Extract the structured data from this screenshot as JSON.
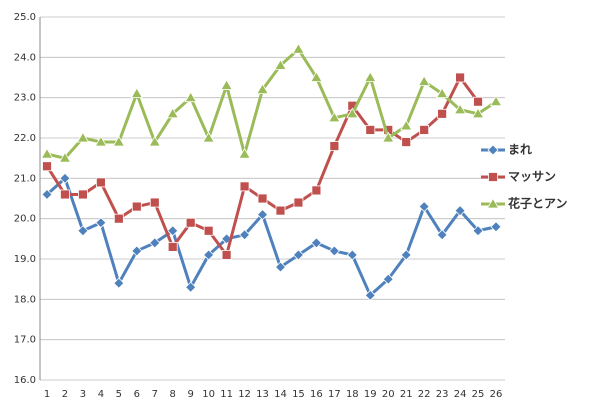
{
  "chart_data": {
    "type": "line",
    "categories": [
      "1",
      "2",
      "3",
      "4",
      "5",
      "6",
      "7",
      "8",
      "9",
      "10",
      "11",
      "12",
      "13",
      "14",
      "15",
      "16",
      "17",
      "18",
      "19",
      "20",
      "21",
      "22",
      "23",
      "24",
      "25",
      "26"
    ],
    "series": [
      {
        "name": "まれ",
        "color": "#4f81bd",
        "marker": "diamond",
        "values": [
          20.6,
          21.0,
          19.7,
          19.9,
          18.4,
          19.2,
          19.4,
          19.7,
          18.3,
          19.1,
          19.5,
          19.6,
          20.1,
          18.8,
          19.1,
          19.4,
          19.2,
          19.1,
          18.1,
          18.5,
          19.1,
          20.3,
          19.6,
          20.2,
          19.7,
          19.8
        ]
      },
      {
        "name": "マッサン",
        "color": "#c0504d",
        "marker": "square",
        "values": [
          21.3,
          20.6,
          20.6,
          20.9,
          20.0,
          20.3,
          20.4,
          19.3,
          19.9,
          19.7,
          19.1,
          20.8,
          20.5,
          20.2,
          20.4,
          20.7,
          21.8,
          22.8,
          22.2,
          22.2,
          21.9,
          22.2,
          22.6,
          23.5,
          22.9,
          null
        ]
      },
      {
        "name": "花子とアン",
        "color": "#9bbb59",
        "marker": "triangle",
        "values": [
          21.6,
          21.5,
          22.0,
          21.9,
          21.9,
          23.1,
          21.9,
          22.6,
          23.0,
          22.0,
          23.3,
          21.6,
          23.2,
          23.8,
          24.2,
          23.5,
          22.5,
          22.6,
          23.5,
          22.0,
          22.3,
          23.4,
          23.1,
          22.7,
          22.6,
          22.9
        ]
      }
    ],
    "ylim": [
      16,
      25
    ],
    "yticks": [
      {
        "value": 16,
        "label": "16.0"
      },
      {
        "value": 17,
        "label": "17.0"
      },
      {
        "value": 18,
        "label": "18.0"
      },
      {
        "value": 19,
        "label": "19.0"
      },
      {
        "value": 20,
        "label": "20.0"
      },
      {
        "value": 21,
        "label": "21.0"
      },
      {
        "value": 22,
        "label": "22.0"
      },
      {
        "value": 23,
        "label": "23.0"
      },
      {
        "value": 24,
        "label": "24.0"
      },
      {
        "value": 25,
        "label": "25.0"
      }
    ],
    "grid": true,
    "legend": "right"
  }
}
